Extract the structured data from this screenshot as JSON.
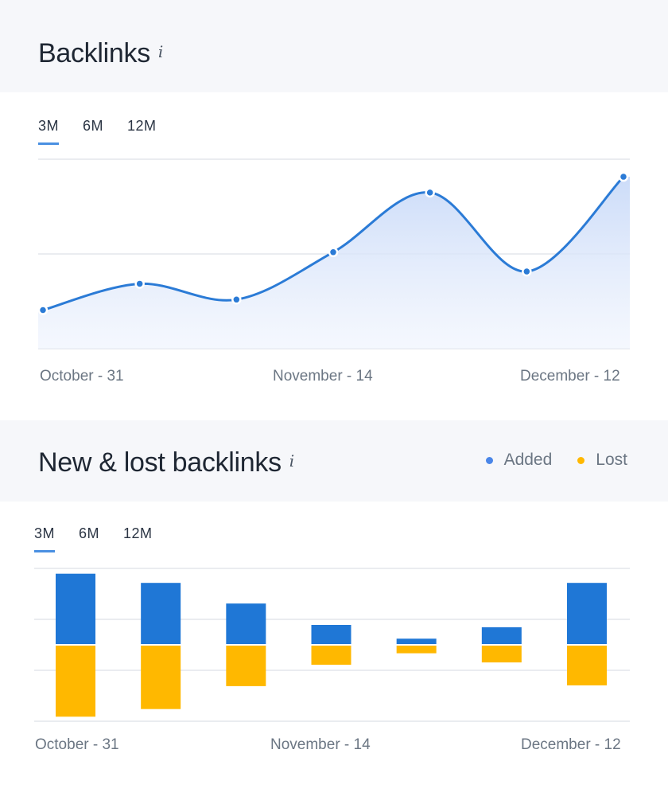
{
  "backlinks": {
    "title": "Backlinks",
    "info_icon": "i",
    "tabs": [
      "3M",
      "6M",
      "12M"
    ],
    "active_tab": 0
  },
  "new_lost": {
    "title": "New & lost backlinks",
    "info_icon": "i",
    "tabs": [
      "3M",
      "6M",
      "12M"
    ],
    "active_tab": 0,
    "legend": [
      {
        "label": "Added",
        "color": "#4a86e8"
      },
      {
        "label": "Lost",
        "color": "#ffb800"
      }
    ]
  },
  "chart_data": [
    {
      "type": "area",
      "title": "Backlinks",
      "x_tick_labels": [
        "October - 31",
        "November - 14",
        "December - 12"
      ],
      "series": [
        {
          "values": [
            22,
            37,
            28,
            55,
            89,
            44,
            98
          ]
        }
      ],
      "ylim": [
        0,
        108
      ],
      "grid": true,
      "colors": {
        "line": "#2b7bd6",
        "fill": "#c9daf8"
      }
    },
    {
      "type": "bar",
      "title": "New & lost backlinks",
      "x_tick_labels": [
        "October - 31",
        "November - 14",
        "December - 12"
      ],
      "series": [
        {
          "name": "Added",
          "values": [
            92,
            80,
            53,
            25,
            7,
            22,
            80
          ]
        },
        {
          "name": "Lost",
          "values": [
            -93,
            -83,
            -53,
            -25,
            -10,
            -22,
            -52
          ]
        }
      ],
      "ylim": [
        -100,
        100
      ],
      "grid": true,
      "colors": {
        "Added": "#1f77d6",
        "Lost": "#ffb800"
      }
    }
  ]
}
